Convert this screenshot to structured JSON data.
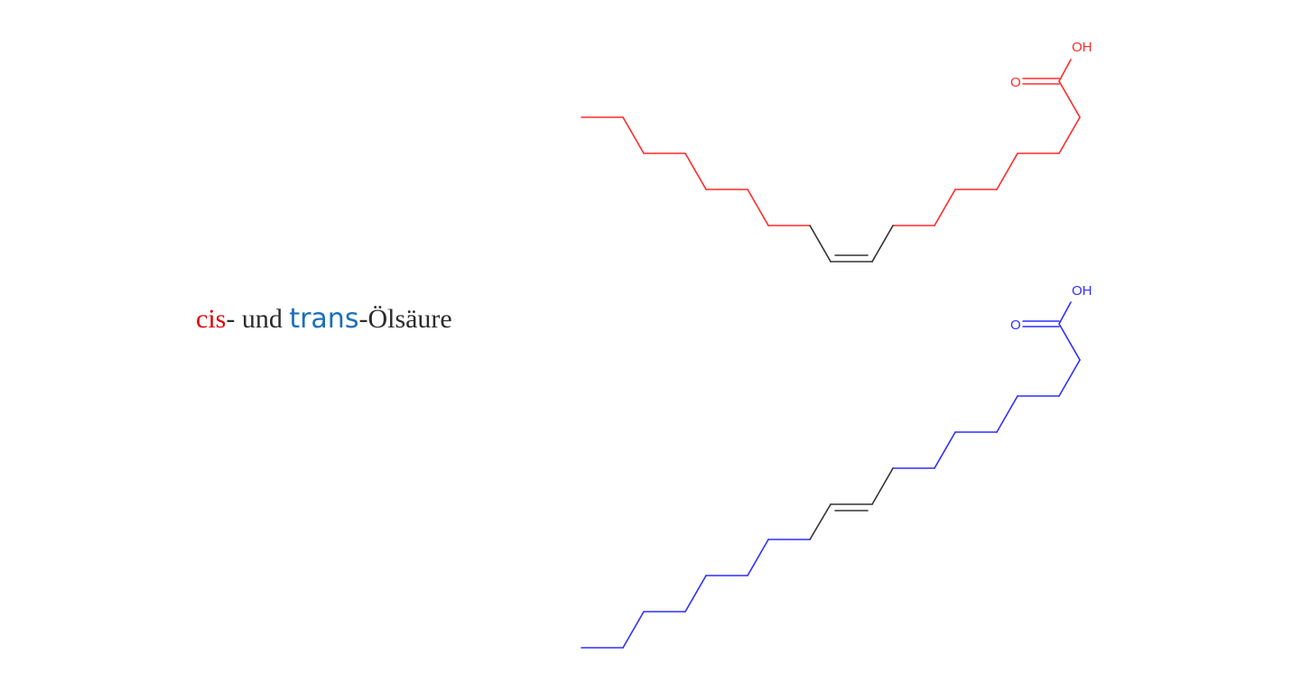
{
  "caption": {
    "cis": "cis",
    "middle": "- und ",
    "trans": "trans",
    "suffix": "-Ölsäure"
  },
  "colors": {
    "cis": "#ff2a2a",
    "cis_text": "#e00000",
    "trans": "#2f2fff",
    "trans_text": "#1a6fb8",
    "double_bond": "#333333",
    "caption_text": "#2b2b2b"
  },
  "cis_molecule": {
    "hydroxyl_label": "OH",
    "carbonyl_label": "O"
  },
  "trans_molecule": {
    "hydroxyl_label": "OH",
    "carbonyl_label": "O"
  }
}
